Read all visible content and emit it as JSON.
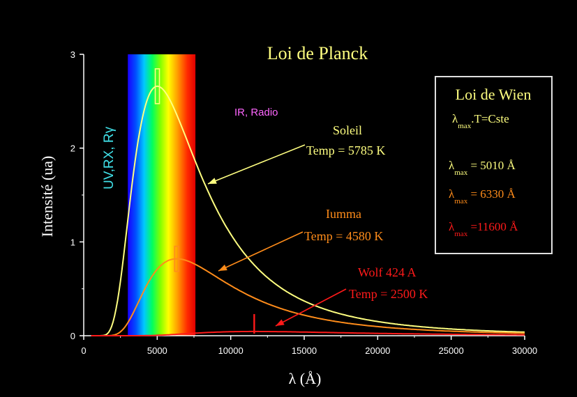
{
  "chart_data": {
    "type": "line",
    "title": "Loi de Planck",
    "xlabel": "λ (Å)",
    "ylabel": "Intensité (ua)",
    "xlim": [
      0,
      30000
    ],
    "ylim": [
      0,
      3
    ],
    "xticks": [
      0,
      5000,
      10000,
      15000,
      20000,
      25000,
      30000
    ],
    "yticks": [
      0,
      1,
      2,
      3
    ],
    "visible_band": {
      "x_start": 3000,
      "x_end": 7600
    },
    "series": [
      {
        "name": "Soleil",
        "temperature_K": 5785,
        "peak_x": 5010,
        "peak_y": 2.66,
        "color": "#ffff80"
      },
      {
        "name": "Iumma",
        "temperature_K": 4580,
        "peak_x": 6330,
        "peak_y": 0.82,
        "color": "#ff8c1a"
      },
      {
        "name": "Wolf 424 A",
        "temperature_K": 2500,
        "peak_x": 11600,
        "peak_y": 0.045,
        "color": "#ff1a1a"
      }
    ],
    "annotations": {
      "uv": "UV,RX, Rγ",
      "ir": "IR, Radio",
      "soleil_name": "Soleil",
      "soleil_temp": "Temp = 5785 K",
      "iumma_name": "Iumma",
      "iumma_temp": "Temp = 4580 K",
      "wolf_name": "Wolf 424 A",
      "wolf_temp": "Temp = 2500 K"
    },
    "wien_box": {
      "title": "Loi de Wien",
      "law_lambda": "λ",
      "law_sub": "max",
      "law_rest": ".T=Cste",
      "rows": [
        {
          "lambda": "λ",
          "sub": "max",
          "value": " = 5010 Å",
          "color": "#ffff80"
        },
        {
          "lambda": "λ",
          "sub": "max",
          "value": " = 6330 Å",
          "color": "#ff8c1a"
        },
        {
          "lambda": "λ",
          "sub": "max",
          "value": " =11600 Å",
          "color": "#ff1a1a"
        }
      ]
    }
  }
}
